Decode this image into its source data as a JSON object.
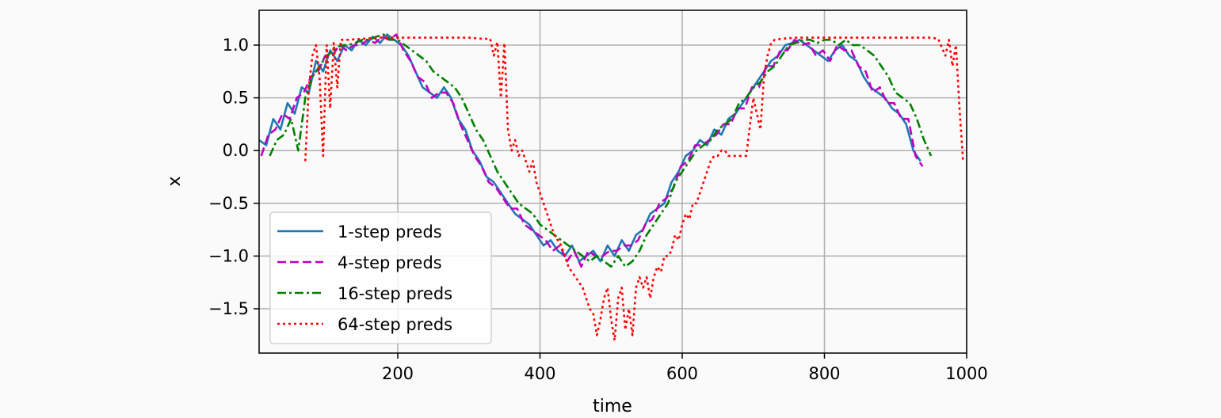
{
  "chart_data": {
    "type": "line",
    "title": "",
    "xlabel": "time",
    "ylabel": "x",
    "xlim": [
      5,
      1000
    ],
    "ylim": [
      -1.92,
      1.33
    ],
    "xticks": [
      200,
      400,
      600,
      800,
      1000
    ],
    "xtick_labels": [
      "200",
      "400",
      "600",
      "800",
      "1000"
    ],
    "yticks": [
      1.0,
      0.5,
      0.0,
      -0.5,
      -1.0,
      -1.5
    ],
    "ytick_labels": [
      "1.0",
      "0.5",
      "0.0",
      "−0.5",
      "−1.0",
      "−1.5"
    ],
    "grid": true,
    "legend": "lower-left",
    "series": [
      {
        "name": "1-step preds",
        "color": "#1f77b4",
        "style": "solid",
        "x": [
          5,
          15,
          25,
          35,
          45,
          55,
          65,
          75,
          85,
          95,
          105,
          115,
          125,
          135,
          145,
          155,
          165,
          175,
          185,
          195,
          205,
          215,
          225,
          235,
          245,
          255,
          265,
          275,
          285,
          295,
          305,
          315,
          325,
          335,
          345,
          355,
          365,
          375,
          385,
          395,
          405,
          415,
          425,
          435,
          445,
          455,
          465,
          475,
          485,
          495,
          505,
          515,
          525,
          535,
          545,
          555,
          565,
          575,
          585,
          595,
          605,
          615,
          625,
          635,
          645,
          655,
          665,
          675,
          685,
          695,
          705,
          715,
          725,
          735,
          745,
          755,
          765,
          775,
          785,
          795,
          805,
          815,
          825,
          835,
          845,
          855,
          865,
          875,
          885,
          895,
          905,
          915,
          925,
          935
        ],
        "y": [
          0.1,
          0.05,
          0.3,
          0.2,
          0.45,
          0.35,
          0.6,
          0.55,
          0.85,
          0.75,
          0.95,
          0.85,
          1.0,
          0.95,
          1.05,
          1.0,
          1.08,
          1.02,
          1.1,
          1.05,
          1.0,
          0.9,
          0.75,
          0.6,
          0.55,
          0.5,
          0.6,
          0.5,
          0.3,
          0.2,
          0.0,
          -0.1,
          -0.25,
          -0.3,
          -0.4,
          -0.5,
          -0.6,
          -0.65,
          -0.7,
          -0.8,
          -0.9,
          -0.85,
          -0.95,
          -1.0,
          -0.9,
          -1.05,
          -1.0,
          -0.95,
          -1.05,
          -0.9,
          -1.0,
          -0.85,
          -0.95,
          -0.8,
          -0.75,
          -0.6,
          -0.55,
          -0.5,
          -0.3,
          -0.2,
          -0.05,
          0.0,
          0.1,
          0.05,
          0.2,
          0.15,
          0.3,
          0.35,
          0.45,
          0.55,
          0.65,
          0.75,
          0.85,
          0.9,
          1.0,
          1.02,
          1.05,
          1.0,
          0.95,
          0.9,
          0.85,
          0.95,
          1.0,
          0.9,
          0.85,
          0.7,
          0.6,
          0.55,
          0.5,
          0.4,
          0.35,
          0.25,
          0.0,
          -0.1
        ]
      },
      {
        "name": "4-step preds",
        "color": "#bf00bf",
        "style": "dashed",
        "x": [
          8,
          18,
          28,
          38,
          48,
          58,
          68,
          78,
          88,
          98,
          108,
          118,
          128,
          138,
          148,
          158,
          168,
          178,
          188,
          198,
          208,
          218,
          228,
          238,
          248,
          258,
          268,
          278,
          288,
          298,
          308,
          318,
          328,
          338,
          348,
          358,
          368,
          378,
          388,
          398,
          408,
          418,
          428,
          438,
          448,
          458,
          468,
          478,
          488,
          498,
          508,
          518,
          528,
          538,
          548,
          558,
          568,
          578,
          588,
          598,
          608,
          618,
          628,
          638,
          648,
          658,
          668,
          678,
          688,
          698,
          708,
          718,
          728,
          738,
          748,
          758,
          768,
          778,
          788,
          798,
          808,
          818,
          828,
          838,
          848,
          858,
          868,
          878,
          888,
          898,
          908,
          918,
          928,
          938
        ],
        "y": [
          -0.05,
          0.15,
          0.2,
          0.35,
          0.3,
          0.5,
          0.55,
          0.7,
          0.75,
          0.9,
          0.9,
          1.0,
          0.95,
          1.0,
          1.0,
          1.05,
          1.02,
          1.08,
          1.05,
          1.1,
          0.95,
          0.85,
          0.7,
          0.65,
          0.5,
          0.55,
          0.55,
          0.45,
          0.25,
          0.1,
          -0.05,
          -0.15,
          -0.3,
          -0.35,
          -0.45,
          -0.55,
          -0.55,
          -0.7,
          -0.75,
          -0.8,
          -0.85,
          -0.95,
          -0.9,
          -1.05,
          -0.95,
          -1.1,
          -0.95,
          -1.0,
          -1.0,
          -0.95,
          -0.95,
          -0.9,
          -0.9,
          -0.85,
          -0.7,
          -0.65,
          -0.5,
          -0.45,
          -0.35,
          -0.15,
          -0.1,
          0.05,
          0.05,
          0.1,
          0.15,
          0.25,
          0.25,
          0.4,
          0.4,
          0.6,
          0.6,
          0.8,
          0.8,
          0.95,
          0.95,
          1.05,
          1.0,
          1.02,
          0.9,
          0.95,
          0.85,
          1.0,
          0.95,
          0.95,
          0.8,
          0.75,
          0.55,
          0.6,
          0.45,
          0.45,
          0.3,
          0.3,
          -0.05,
          -0.15
        ]
      },
      {
        "name": "16-step preds",
        "color": "#008000",
        "style": "dashdot",
        "x": [
          20,
          30,
          40,
          50,
          60,
          70,
          80,
          90,
          100,
          110,
          120,
          130,
          140,
          150,
          160,
          170,
          180,
          190,
          200,
          210,
          220,
          230,
          240,
          250,
          260,
          270,
          280,
          290,
          300,
          310,
          320,
          330,
          340,
          350,
          360,
          370,
          380,
          390,
          400,
          410,
          420,
          430,
          440,
          450,
          460,
          470,
          480,
          490,
          500,
          510,
          520,
          530,
          540,
          550,
          560,
          570,
          580,
          590,
          600,
          610,
          620,
          630,
          640,
          650,
          660,
          670,
          680,
          690,
          700,
          710,
          720,
          730,
          740,
          750,
          760,
          770,
          780,
          790,
          800,
          810,
          820,
          830,
          840,
          850,
          860,
          870,
          880,
          890,
          900,
          910,
          920,
          930,
          940,
          950
        ],
        "y": [
          -0.05,
          0.1,
          0.15,
          0.3,
          0.0,
          0.5,
          0.7,
          0.8,
          0.9,
          0.95,
          1.0,
          1.0,
          1.02,
          1.05,
          1.05,
          1.08,
          1.1,
          1.05,
          1.05,
          1.0,
          0.95,
          0.9,
          0.85,
          0.75,
          0.7,
          0.65,
          0.6,
          0.5,
          0.35,
          0.2,
          0.1,
          -0.05,
          -0.2,
          -0.3,
          -0.4,
          -0.5,
          -0.55,
          -0.6,
          -0.7,
          -0.75,
          -0.8,
          -0.85,
          -0.9,
          -0.95,
          -1.0,
          -1.05,
          -1.0,
          -1.05,
          -1.1,
          -1.0,
          -1.1,
          -1.05,
          -0.95,
          -0.8,
          -0.7,
          -0.6,
          -0.5,
          -0.3,
          -0.2,
          -0.1,
          0.0,
          0.05,
          0.1,
          0.2,
          0.25,
          0.3,
          0.45,
          0.5,
          0.6,
          0.65,
          0.75,
          0.8,
          0.9,
          1.0,
          1.02,
          1.05,
          1.05,
          1.02,
          1.05,
          1.05,
          1.0,
          1.05,
          1.0,
          1.0,
          0.95,
          0.9,
          0.8,
          0.7,
          0.55,
          0.5,
          0.45,
          0.3,
          0.1,
          -0.05
        ]
      },
      {
        "name": "64-step preds",
        "color": "#ff0000",
        "style": "dotted",
        "x": [
          70,
          75,
          80,
          85,
          90,
          95,
          100,
          105,
          110,
          115,
          120,
          130,
          150,
          170,
          200,
          250,
          300,
          320,
          330,
          335,
          340,
          345,
          350,
          355,
          360,
          365,
          370,
          375,
          380,
          385,
          390,
          395,
          400,
          405,
          410,
          415,
          420,
          425,
          430,
          435,
          440,
          445,
          450,
          455,
          460,
          465,
          470,
          475,
          480,
          485,
          490,
          495,
          500,
          505,
          510,
          515,
          520,
          525,
          530,
          535,
          540,
          545,
          550,
          555,
          560,
          565,
          570,
          575,
          580,
          585,
          590,
          595,
          600,
          605,
          610,
          615,
          620,
          625,
          630,
          635,
          640,
          645,
          650,
          655,
          660,
          665,
          670,
          680,
          690,
          700,
          710,
          715,
          720,
          725,
          730,
          740,
          760,
          800,
          850,
          900,
          950,
          960,
          970,
          975,
          980,
          985,
          990,
          995
        ],
        "y": [
          -0.1,
          0.6,
          0.9,
          1.0,
          0.7,
          -0.05,
          1.0,
          0.4,
          1.02,
          0.6,
          1.05,
          1.05,
          1.06,
          1.07,
          1.07,
          1.07,
          1.07,
          1.06,
          1.06,
          0.9,
          1.03,
          0.5,
          1.02,
          0.2,
          0.0,
          0.1,
          -0.05,
          0.0,
          -0.1,
          -0.2,
          -0.1,
          -0.3,
          -0.4,
          -0.5,
          -0.6,
          -0.7,
          -0.8,
          -0.85,
          -0.9,
          -1.0,
          -1.1,
          -1.15,
          -1.2,
          -1.25,
          -1.3,
          -1.4,
          -1.5,
          -1.55,
          -1.75,
          -1.6,
          -1.4,
          -1.3,
          -1.6,
          -1.8,
          -1.4,
          -1.3,
          -1.7,
          -1.5,
          -1.75,
          -1.3,
          -1.2,
          -1.3,
          -1.2,
          -1.4,
          -1.2,
          -1.1,
          -1.15,
          -1.0,
          -1.0,
          -0.95,
          -0.8,
          -0.85,
          -0.7,
          -0.6,
          -0.65,
          -0.5,
          -0.5,
          -0.4,
          -0.3,
          -0.2,
          -0.1,
          -0.05,
          -0.05,
          0.0,
          0.0,
          -0.05,
          -0.05,
          -0.05,
          -0.05,
          0.5,
          0.2,
          0.7,
          0.9,
          1.02,
          1.05,
          1.06,
          1.07,
          1.07,
          1.07,
          1.07,
          1.07,
          1.06,
          0.9,
          1.05,
          0.8,
          1.0,
          0.4,
          -0.1
        ]
      }
    ]
  }
}
